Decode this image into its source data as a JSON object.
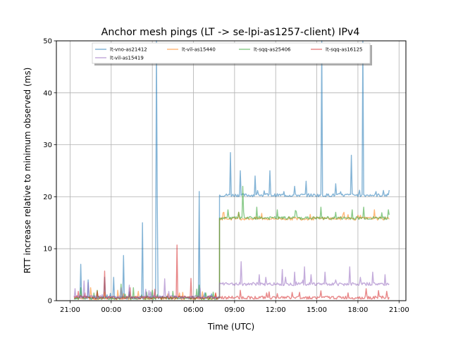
{
  "chart_data": {
    "type": "line",
    "title": "Anchor mesh pings (LT -> se-lpi-as1257-client) IPv4",
    "xlabel": "Time (UTC)",
    "ylabel": "RTT increase relative to minimum observed (ms)",
    "xlim": [
      -1.0,
      24.5
    ],
    "ylim": [
      0,
      50
    ],
    "grid": true,
    "legend_position": "top",
    "x_ticks": [
      {
        "value": 0,
        "label": "21:00"
      },
      {
        "value": 3,
        "label": "00:00"
      },
      {
        "value": 6,
        "label": "03:00"
      },
      {
        "value": 9,
        "label": "06:00"
      },
      {
        "value": 12,
        "label": "09:00"
      },
      {
        "value": 15,
        "label": "12:00"
      },
      {
        "value": 18,
        "label": "15:00"
      },
      {
        "value": 21,
        "label": "18:00"
      },
      {
        "value": 24,
        "label": "21:00"
      }
    ],
    "y_ticks": [
      0,
      10,
      20,
      30,
      40,
      50
    ],
    "x_units_note": "hours after 21:00 UTC",
    "series": [
      {
        "name": "lt-vno-as21412",
        "color": "#1f77b4",
        "start": 0.3,
        "end": 23.3,
        "shift_at": 10.9,
        "base_before": 0.6,
        "base_after": 20.3,
        "spikes": [
          [
            0.8,
            7.0
          ],
          [
            1.3,
            4.0
          ],
          [
            2.5,
            4.5
          ],
          [
            3.2,
            4.5
          ],
          [
            3.9,
            8.7
          ],
          [
            5.3,
            15.0
          ],
          [
            6.3,
            50
          ],
          [
            6.35,
            18.5
          ],
          [
            9.4,
            21.0
          ],
          [
            11.7,
            28.5
          ],
          [
            12.4,
            25.0
          ],
          [
            13.5,
            24.0
          ],
          [
            14.6,
            25.0
          ],
          [
            15.6,
            21.0
          ],
          [
            16.4,
            22.0
          ],
          [
            17.2,
            23.0
          ],
          [
            18.35,
            50
          ],
          [
            19.4,
            22.5
          ],
          [
            20.5,
            28.0
          ],
          [
            21.35,
            50
          ],
          [
            22.3,
            21.0
          ]
        ]
      },
      {
        "name": "lt-vil-as15440",
        "color": "#ff7f0e",
        "start": 0.3,
        "end": 23.3,
        "shift_at": 10.9,
        "base_before": 0.5,
        "base_after": 15.8,
        "spikes": [
          [
            1.5,
            2.5
          ],
          [
            3.5,
            2.0
          ],
          [
            5.0,
            1.8
          ],
          [
            8.0,
            1.5
          ],
          [
            11.2,
            17.0
          ],
          [
            14.0,
            16.8
          ],
          [
            17.5,
            16.6
          ],
          [
            20.0,
            17.0
          ],
          [
            22.2,
            17.5
          ]
        ]
      },
      {
        "name": "lt-sqq-as25406",
        "color": "#2ca02c",
        "start": 0.3,
        "end": 23.3,
        "shift_at": 10.9,
        "base_before": 0.5,
        "base_after": 15.9,
        "spikes": [
          [
            0.8,
            2.5
          ],
          [
            2.0,
            2.0
          ],
          [
            3.7,
            3.2
          ],
          [
            4.6,
            2.5
          ],
          [
            6.0,
            2.0
          ],
          [
            7.5,
            1.8
          ],
          [
            9.4,
            3.0
          ],
          [
            11.5,
            17.5
          ],
          [
            12.3,
            17.0
          ],
          [
            12.6,
            22.0
          ],
          [
            13.6,
            18.0
          ],
          [
            15.1,
            17.5
          ],
          [
            16.5,
            17.2
          ],
          [
            18.3,
            18.0
          ],
          [
            19.4,
            17.0
          ],
          [
            20.6,
            17.5
          ],
          [
            21.4,
            18.0
          ],
          [
            23.2,
            17.5
          ]
        ]
      },
      {
        "name": "lt-sqq-as16125",
        "color": "#d62728",
        "start": 0.3,
        "end": 23.3,
        "shift_at": null,
        "base_before": 0.6,
        "base_after": 0.6,
        "spikes": [
          [
            0.6,
            1.8
          ],
          [
            1.1,
            1.5
          ],
          [
            2.5,
            5.7
          ],
          [
            4.4,
            2.5
          ],
          [
            6.2,
            2.2
          ],
          [
            7.8,
            10.7
          ],
          [
            8.8,
            4.3
          ],
          [
            10.6,
            1.5
          ],
          [
            12.4,
            2.0
          ],
          [
            14.5,
            1.7
          ],
          [
            16.2,
            1.6
          ],
          [
            18.3,
            1.9
          ],
          [
            20.3,
            1.5
          ],
          [
            21.6,
            2.3
          ],
          [
            23.1,
            1.8
          ]
        ]
      },
      {
        "name": "lt-vil-as15419",
        "color": "#9467bd",
        "start": 0.3,
        "end": 23.3,
        "shift_at": 10.9,
        "base_before": 0.7,
        "base_after": 3.2,
        "spikes": [
          [
            0.35,
            2.3
          ],
          [
            1.0,
            3.8
          ],
          [
            1.3,
            3.5
          ],
          [
            3.7,
            2.5
          ],
          [
            4.3,
            3.0
          ],
          [
            5.5,
            2.2
          ],
          [
            6.9,
            4.2
          ],
          [
            9.5,
            2.4
          ],
          [
            12.5,
            7.5
          ],
          [
            13.8,
            5.0
          ],
          [
            14.3,
            4.5
          ],
          [
            15.5,
            6.0
          ],
          [
            16.4,
            5.5
          ],
          [
            17.1,
            6.5
          ],
          [
            17.6,
            5.0
          ],
          [
            18.6,
            5.5
          ],
          [
            19.4,
            4.0
          ],
          [
            20.4,
            6.5
          ],
          [
            21.2,
            4.5
          ],
          [
            22.1,
            5.5
          ],
          [
            23.0,
            5.0
          ]
        ]
      }
    ]
  }
}
